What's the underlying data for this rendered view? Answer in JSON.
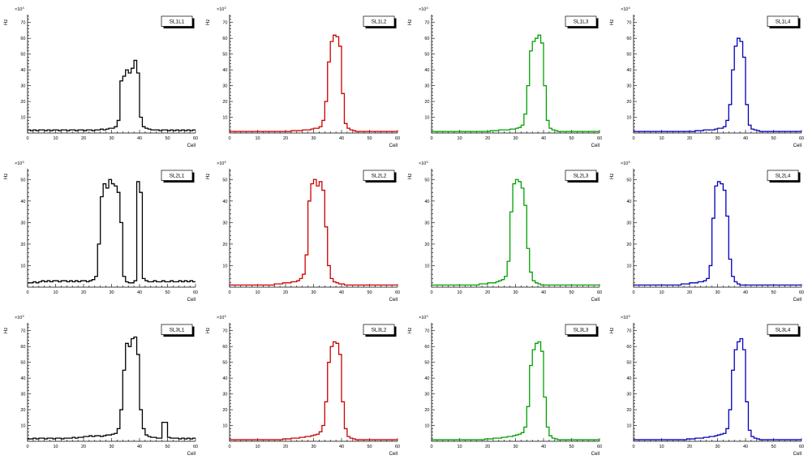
{
  "page": {
    "background": "#ffffff"
  },
  "chart_data": {
    "type": "bar",
    "subtype": "step-histogram-grid",
    "xlabel": "Cell",
    "ylabel": "Hz",
    "y_multiplier_base": "×10",
    "y_multiplier_exp": "3",
    "x_range": [
      0,
      60
    ],
    "x_ticks": [
      0,
      10,
      20,
      30,
      40,
      50,
      60
    ],
    "grid": "off",
    "legend": "none",
    "panels": [
      {
        "label": "SL1L1",
        "color": "#000000",
        "ylim": [
          0,
          75
        ],
        "y_ticks": [
          10,
          20,
          30,
          40,
          50,
          60,
          70
        ],
        "values": [
          2,
          1.5,
          2,
          1.5,
          2,
          2,
          1.5,
          2,
          1.5,
          2,
          2,
          1.5,
          2,
          2,
          1.5,
          2,
          2,
          1.5,
          2,
          2,
          1.5,
          2,
          2,
          1.5,
          2,
          2,
          2.5,
          2,
          2.5,
          3,
          3,
          4,
          8,
          33,
          36,
          40,
          38,
          41,
          46,
          38,
          10,
          4,
          3,
          2.5,
          2,
          2,
          2,
          1.5,
          2,
          2,
          1.5,
          2,
          1.5,
          2,
          1.5,
          2,
          1.5,
          2,
          1.5,
          2
        ]
      },
      {
        "label": "SL1L2",
        "color": "#cc0000",
        "ylim": [
          0,
          75
        ],
        "y_ticks": [
          10,
          20,
          30,
          40,
          50,
          60,
          70
        ],
        "values": [
          1,
          1,
          1,
          1,
          1,
          1,
          1,
          1,
          1,
          1,
          1,
          1,
          1,
          1,
          1,
          1,
          1,
          1,
          1,
          1,
          1,
          1,
          1.5,
          1.5,
          1.5,
          1.5,
          2,
          2,
          2,
          2.5,
          3,
          3,
          4,
          8,
          20,
          45,
          58,
          62,
          61,
          55,
          25,
          6,
          3,
          2,
          1.5,
          1,
          1,
          1,
          1,
          1,
          1,
          1,
          1,
          1,
          1,
          1,
          1,
          1,
          1,
          1
        ]
      },
      {
        "label": "SL1L3",
        "color": "#00a000",
        "ylim": [
          0,
          75
        ],
        "y_ticks": [
          10,
          20,
          30,
          40,
          50,
          60,
          70
        ],
        "values": [
          1,
          1,
          1,
          1,
          1,
          1,
          1,
          1,
          1,
          1,
          1,
          1,
          1,
          1,
          1,
          1,
          1,
          1,
          1,
          1,
          1,
          1.5,
          1.5,
          1.5,
          2,
          2,
          2,
          2,
          2.5,
          2.5,
          3,
          3.5,
          5,
          12,
          30,
          52,
          58,
          60,
          62,
          57,
          30,
          8,
          3,
          2,
          1.5,
          1,
          1,
          1,
          1,
          1,
          1,
          1,
          1,
          1,
          1,
          1,
          1,
          1,
          1,
          1
        ]
      },
      {
        "label": "SL1L4",
        "color": "#0000bb",
        "ylim": [
          0,
          75
        ],
        "y_ticks": [
          10,
          20,
          30,
          40,
          50,
          60,
          70
        ],
        "values": [
          1,
          1,
          1,
          1,
          1,
          1,
          1,
          1,
          1,
          1,
          1,
          1,
          1,
          1,
          1,
          1,
          1,
          1,
          1,
          1,
          1,
          1,
          1.5,
          1.5,
          1.5,
          2,
          2,
          2,
          2,
          2.5,
          3,
          3,
          4,
          8,
          18,
          40,
          55,
          60,
          58,
          48,
          18,
          5,
          2.5,
          2,
          1.5,
          1,
          1,
          1,
          1,
          1,
          1,
          1,
          1,
          1,
          1,
          1,
          1,
          1,
          1,
          1
        ]
      },
      {
        "label": "SL2L1",
        "color": "#000000",
        "ylim": [
          0,
          55
        ],
        "y_ticks": [
          10,
          20,
          30,
          40,
          50
        ],
        "values": [
          2,
          2,
          2.5,
          2,
          2.5,
          3,
          2.5,
          3,
          2.5,
          3,
          3,
          2.5,
          3,
          3,
          2.5,
          3,
          2.5,
          3,
          2.5,
          3,
          3,
          2.5,
          3,
          3.5,
          5,
          20,
          42,
          48,
          46,
          50,
          48,
          47,
          44,
          30,
          5,
          2.5,
          2,
          2,
          3,
          49,
          44,
          4,
          3,
          2.5,
          2.5,
          3,
          2.5,
          2.5,
          3,
          2.5,
          2.5,
          3,
          2.5,
          2.5,
          3,
          2.5,
          3,
          2.5,
          3,
          2.5
        ]
      },
      {
        "label": "SL2L2",
        "color": "#cc0000",
        "ylim": [
          0,
          55
        ],
        "y_ticks": [
          10,
          20,
          30,
          40,
          50
        ],
        "values": [
          1,
          1,
          1,
          1,
          1,
          1,
          1,
          1,
          1,
          1,
          1,
          1,
          1,
          1,
          1,
          1,
          1.5,
          1.5,
          1.5,
          2,
          2,
          2,
          2.5,
          2.5,
          3,
          4,
          6,
          15,
          40,
          48,
          50,
          47,
          49,
          45,
          28,
          10,
          4,
          2.5,
          2,
          1.5,
          1.5,
          1,
          1,
          1,
          1,
          1,
          1,
          1,
          1,
          1,
          1,
          1,
          1,
          1,
          1,
          1,
          1,
          1,
          1,
          1
        ]
      },
      {
        "label": "SL2L3",
        "color": "#00a000",
        "ylim": [
          0,
          55
        ],
        "y_ticks": [
          10,
          20,
          30,
          40,
          50
        ],
        "values": [
          1,
          1,
          1,
          1,
          1,
          1,
          1,
          1,
          1,
          1,
          1,
          1,
          1,
          1,
          1,
          1,
          1,
          1.5,
          1.5,
          1.5,
          2,
          2,
          2,
          2.5,
          3,
          3.5,
          5,
          12,
          35,
          48,
          50,
          49,
          46,
          38,
          18,
          7,
          3,
          2,
          1.5,
          1,
          1,
          1,
          1,
          1,
          1,
          1,
          1,
          1,
          1,
          1,
          1,
          1,
          1,
          1,
          1,
          1,
          1,
          1,
          1,
          1
        ]
      },
      {
        "label": "SL2L4",
        "color": "#0000bb",
        "ylim": [
          0,
          55
        ],
        "y_ticks": [
          10,
          20,
          30,
          40,
          50
        ],
        "values": [
          1,
          1,
          1,
          1,
          1,
          1,
          1,
          1,
          1,
          1,
          1,
          1,
          1,
          1,
          1,
          1,
          1,
          1.5,
          1.5,
          1.5,
          2,
          2,
          2,
          2.5,
          2.5,
          3,
          4,
          10,
          32,
          47,
          49,
          48,
          45,
          33,
          13,
          5,
          2.5,
          1.5,
          1,
          1,
          1,
          1,
          1,
          1,
          1,
          1,
          1,
          1,
          1,
          1,
          1,
          1,
          1,
          1,
          1,
          1,
          1,
          1,
          1,
          1
        ]
      },
      {
        "label": "SL3L1",
        "color": "#000000",
        "ylim": [
          0,
          75
        ],
        "y_ticks": [
          10,
          20,
          30,
          40,
          50,
          60,
          70
        ],
        "values": [
          1.5,
          1.5,
          2,
          1.5,
          2,
          2,
          1.5,
          2,
          2,
          1.5,
          2,
          2,
          1.5,
          2,
          2,
          2,
          2.5,
          2,
          2.5,
          2.5,
          3,
          3,
          3.5,
          3,
          3.5,
          3.5,
          3,
          3.5,
          4,
          4,
          4.5,
          5,
          8,
          20,
          45,
          62,
          60,
          65,
          66,
          55,
          20,
          8,
          4,
          3,
          2.5,
          2.5,
          2,
          2,
          12,
          12,
          2.5,
          2,
          2,
          2,
          1.5,
          2,
          1.5,
          2,
          1.5,
          2
        ]
      },
      {
        "label": "SL3L2",
        "color": "#cc0000",
        "ylim": [
          0,
          75
        ],
        "y_ticks": [
          10,
          20,
          30,
          40,
          50,
          60,
          70
        ],
        "values": [
          1,
          1,
          1,
          1,
          1,
          1,
          1,
          1,
          1,
          1,
          1,
          1,
          1,
          1,
          1,
          1,
          1,
          1,
          1,
          1.5,
          1.5,
          1.5,
          2,
          2,
          2,
          2.5,
          2.5,
          3,
          3,
          3.5,
          4,
          4.5,
          6,
          10,
          25,
          50,
          60,
          63,
          62,
          55,
          25,
          8,
          3,
          2,
          1.5,
          1,
          1,
          1,
          1,
          1,
          1,
          1,
          1,
          1,
          1,
          1,
          1,
          1,
          1,
          1
        ]
      },
      {
        "label": "SL3L3",
        "color": "#00a000",
        "ylim": [
          0,
          75
        ],
        "y_ticks": [
          10,
          20,
          30,
          40,
          50,
          60,
          70
        ],
        "values": [
          1,
          1,
          1,
          1,
          1,
          1,
          1,
          1,
          1,
          1,
          1,
          1,
          1,
          1,
          1,
          1,
          1,
          1,
          1,
          1.5,
          1.5,
          1.5,
          2,
          2,
          2,
          2.5,
          2.5,
          3,
          3,
          3.5,
          4,
          4.5,
          5.5,
          9,
          22,
          48,
          58,
          62,
          63,
          57,
          28,
          9,
          3.5,
          2,
          1.5,
          1,
          1,
          1,
          1,
          1,
          1,
          1,
          1,
          1,
          1,
          1,
          1,
          1,
          1,
          1
        ]
      },
      {
        "label": "SL3L4",
        "color": "#0000bb",
        "ylim": [
          0,
          75
        ],
        "y_ticks": [
          10,
          20,
          30,
          40,
          50,
          60,
          70
        ],
        "values": [
          1,
          1,
          1,
          1,
          1,
          1,
          1,
          1,
          1,
          1,
          1,
          1,
          1,
          1,
          1,
          1,
          1,
          1,
          1,
          1.5,
          1.5,
          1.5,
          2,
          2,
          2,
          2.5,
          2.5,
          3,
          3,
          3.5,
          4,
          4.5,
          5,
          8,
          20,
          45,
          58,
          63,
          65,
          58,
          25,
          7,
          3,
          2,
          1.5,
          1,
          1,
          1,
          1,
          1,
          1,
          1,
          1,
          1,
          1,
          1,
          1,
          1,
          1,
          1
        ]
      }
    ]
  }
}
